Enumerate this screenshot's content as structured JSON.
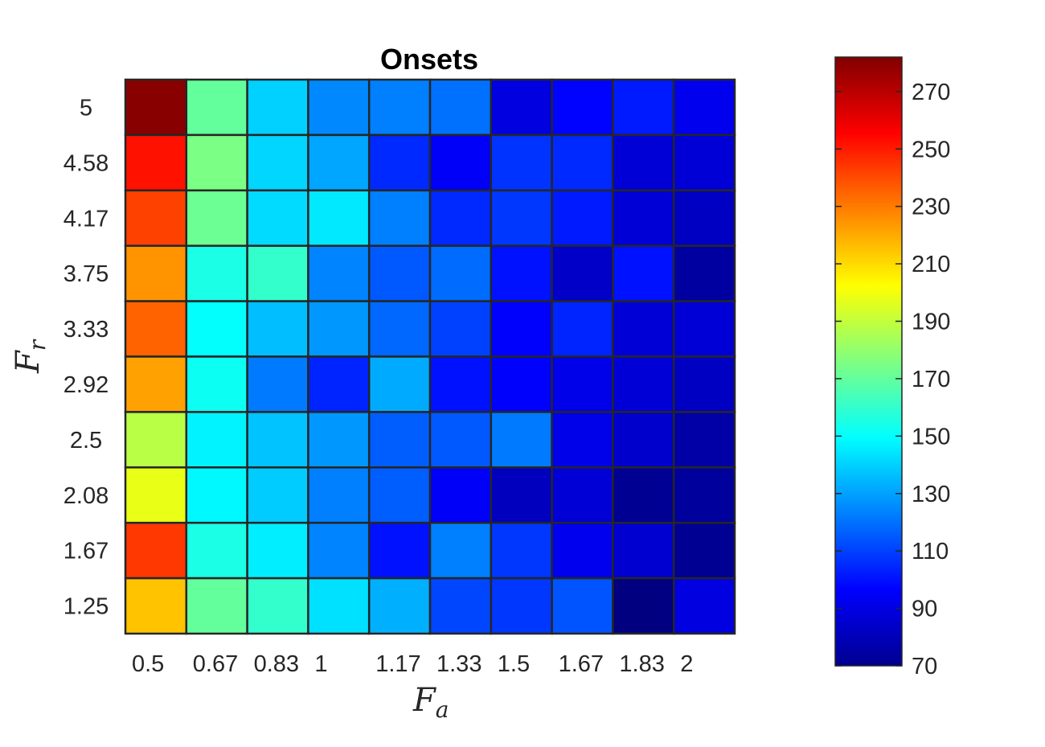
{
  "chart_data": {
    "type": "heatmap",
    "title": "Onsets",
    "xlabel": {
      "main": "F",
      "sub": "a"
    },
    "ylabel": {
      "main": "F",
      "sub": "r"
    },
    "x_categories": [
      "0.5",
      "0.67",
      "0.83",
      "1",
      "1.17",
      "1.33",
      "1.5",
      "1.67",
      "1.83",
      "2"
    ],
    "y_categories": [
      "1.25",
      "1.67",
      "2.08",
      "2.5",
      "2.92",
      "3.33",
      "3.75",
      "4.17",
      "4.58",
      "5"
    ],
    "values_top_to_bottom": [
      [
        280,
        170,
        140,
        125,
        123,
        120,
        90,
        97,
        102,
        93
      ],
      [
        252,
        175,
        141,
        131,
        105,
        95,
        107,
        105,
        88,
        88
      ],
      [
        242,
        172,
        142,
        145,
        123,
        105,
        108,
        102,
        88,
        84
      ],
      [
        225,
        155,
        160,
        124,
        115,
        119,
        100,
        85,
        100,
        77
      ],
      [
        235,
        150,
        136,
        128,
        118,
        110,
        96,
        104,
        88,
        88
      ],
      [
        222,
        152,
        122,
        104,
        132,
        100,
        96,
        92,
        88,
        84
      ],
      [
        188,
        147,
        137,
        128,
        116,
        115,
        122,
        92,
        86,
        78
      ],
      [
        198,
        148,
        139,
        123,
        116,
        95,
        83,
        88,
        74,
        76
      ],
      [
        244,
        155,
        146,
        124,
        100,
        123,
        108,
        93,
        87,
        74
      ],
      [
        215,
        170,
        160,
        143,
        133,
        111,
        108,
        114,
        70,
        90
      ]
    ],
    "colorbar": {
      "min": 70,
      "max": 282,
      "ticks": [
        70,
        90,
        110,
        130,
        150,
        170,
        190,
        210,
        230,
        250,
        270
      ],
      "colormap": "jet"
    },
    "grid_color": "#262626"
  }
}
